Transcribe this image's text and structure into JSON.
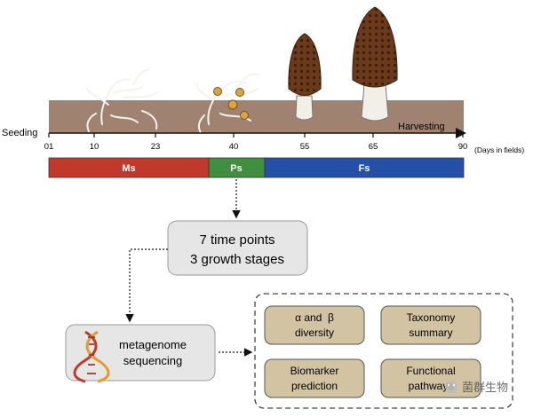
{
  "timeline": {
    "start_label": "Seeding",
    "end_label": "Harvesting",
    "ticks": [
      "01",
      "10",
      "23",
      "40",
      "55",
      "65",
      "90"
    ],
    "axis_unit": "(Days in fields)"
  },
  "stages": [
    {
      "label": "Ms",
      "color": "#c0392b"
    },
    {
      "label": "Ps",
      "color": "#3f8f3f"
    },
    {
      "label": "Fs",
      "color": "#2450a8"
    }
  ],
  "summary_box": {
    "line1": "7 time points",
    "line2": "3 growth stages"
  },
  "sequencing_box": {
    "line1": "metagenome",
    "line2": "sequencing"
  },
  "analyses": [
    {
      "line1": "α and  β",
      "line2": "diversity"
    },
    {
      "line1": "Taxonomy",
      "line2": "summary"
    },
    {
      "line1": "Biomarker",
      "line2": "prediction"
    },
    {
      "line1": "Functional",
      "line2": "pathways"
    }
  ],
  "watermark": "菌群生物",
  "colors": {
    "soil": "#a08270",
    "analysis_box": "#d2c3a3",
    "gray_box": "#e6e6e6",
    "morel_cap": "#6b3a1a",
    "morel_stem": "#f2efe8"
  }
}
